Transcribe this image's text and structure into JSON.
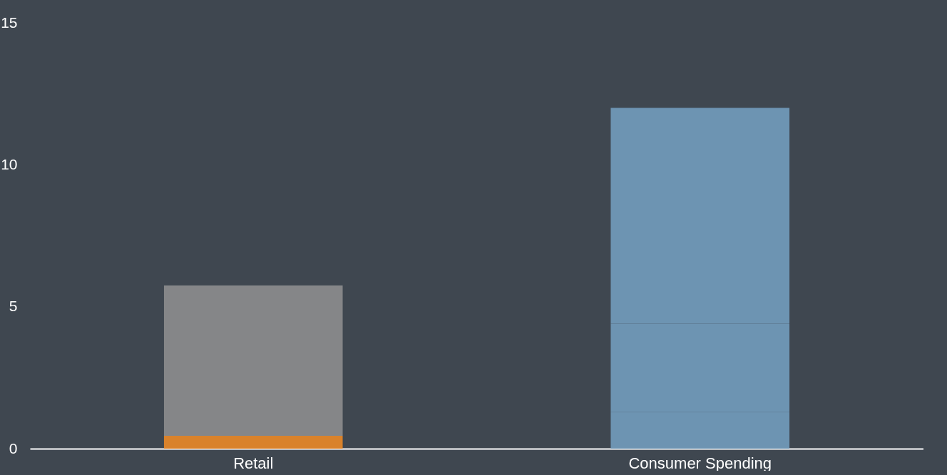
{
  "chart_data": {
    "type": "bar",
    "stacked": true,
    "categories": [
      "Retail",
      "Consumer Spending"
    ],
    "series": [
      {
        "color": "#d9822b",
        "values": [
          0.45,
          null
        ]
      },
      {
        "color": "#858688",
        "values": [
          5.3,
          null
        ]
      },
      {
        "color": "#6d94b2",
        "values": [
          null,
          1.3
        ]
      },
      {
        "color": "#6d94b2",
        "values": [
          null,
          3.1
        ]
      },
      {
        "color": "#6d94b2",
        "values": [
          null,
          7.6
        ]
      }
    ],
    "ylim": [
      0,
      15
    ],
    "yticks": [
      0,
      5,
      10,
      15
    ],
    "grid": false
  }
}
